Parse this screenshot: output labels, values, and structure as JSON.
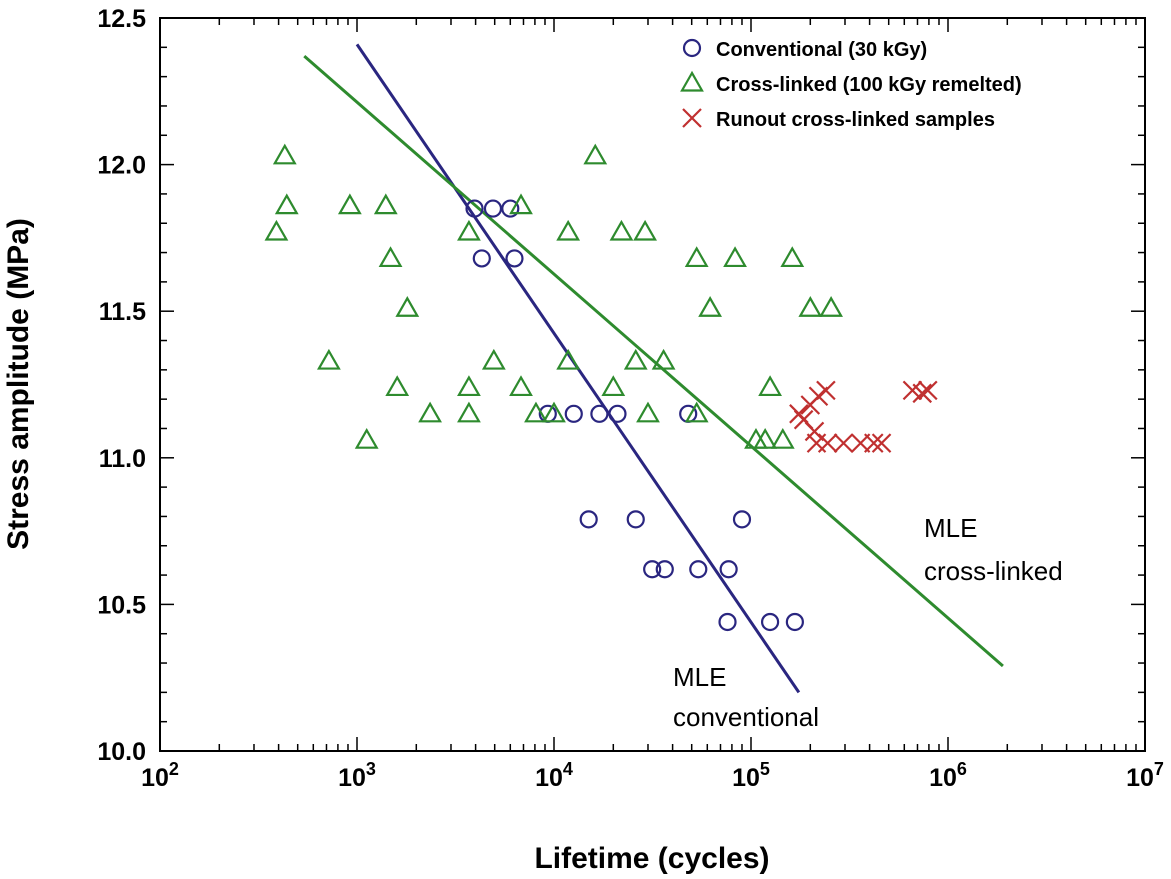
{
  "chart_data": {
    "type": "scatter",
    "xlabel": "Lifetime (cycles)",
    "ylabel": "Stress amplitude (MPa)",
    "xscale": "log",
    "xlim": [
      100,
      10000000
    ],
    "ylim": [
      10.0,
      12.5
    ],
    "x_ticks": [
      {
        "base": "10",
        "exp": "2"
      },
      {
        "base": "10",
        "exp": "3"
      },
      {
        "base": "10",
        "exp": "4"
      },
      {
        "base": "10",
        "exp": "5"
      },
      {
        "base": "10",
        "exp": "6"
      },
      {
        "base": "10",
        "exp": "7"
      }
    ],
    "y_ticks": [
      "10.0",
      "10.5",
      "11.0",
      "11.5",
      "12.0",
      "12.5"
    ],
    "legend_position": "top-right",
    "series": [
      {
        "name": "Conventional (30 kGy)",
        "marker": "circle",
        "color": "#2a2680",
        "points": [
          [
            3950,
            11.85
          ],
          [
            4900,
            11.85
          ],
          [
            6000,
            11.85
          ],
          [
            4300,
            11.68
          ],
          [
            6300,
            11.68
          ],
          [
            9300,
            11.15
          ],
          [
            12600,
            11.15
          ],
          [
            17000,
            11.15
          ],
          [
            21000,
            11.15
          ],
          [
            48000,
            11.15
          ],
          [
            15000,
            10.79
          ],
          [
            26000,
            10.79
          ],
          [
            90000,
            10.79
          ],
          [
            31500,
            10.62
          ],
          [
            36500,
            10.62
          ],
          [
            54000,
            10.62
          ],
          [
            77000,
            10.62
          ],
          [
            76000,
            10.44
          ],
          [
            125000,
            10.44
          ],
          [
            167000,
            10.44
          ]
        ]
      },
      {
        "name": "Cross-linked (100 kGy remelted)",
        "marker": "triangle",
        "color": "#2e8b2e",
        "points": [
          [
            430,
            12.03
          ],
          [
            16200,
            12.03
          ],
          [
            440,
            11.86
          ],
          [
            920,
            11.86
          ],
          [
            1400,
            11.86
          ],
          [
            6800,
            11.86
          ],
          [
            390,
            11.77
          ],
          [
            3700,
            11.77
          ],
          [
            11800,
            11.77
          ],
          [
            22000,
            11.77
          ],
          [
            29000,
            11.77
          ],
          [
            1480,
            11.68
          ],
          [
            53000,
            11.68
          ],
          [
            83000,
            11.68
          ],
          [
            162000,
            11.68
          ],
          [
            1800,
            11.51
          ],
          [
            62000,
            11.51
          ],
          [
            200000,
            11.51
          ],
          [
            255000,
            11.51
          ],
          [
            720,
            11.33
          ],
          [
            4950,
            11.33
          ],
          [
            11800,
            11.33
          ],
          [
            26000,
            11.33
          ],
          [
            36000,
            11.33
          ],
          [
            1600,
            11.24
          ],
          [
            3700,
            11.24
          ],
          [
            6800,
            11.24
          ],
          [
            20000,
            11.24
          ],
          [
            125000,
            11.24
          ],
          [
            2350,
            11.15
          ],
          [
            3700,
            11.15
          ],
          [
            8100,
            11.15
          ],
          [
            10000,
            11.15
          ],
          [
            30000,
            11.15
          ],
          [
            53000,
            11.15
          ],
          [
            1120,
            11.06
          ],
          [
            106000,
            11.06
          ],
          [
            118000,
            11.06
          ],
          [
            145000,
            11.06
          ]
        ]
      },
      {
        "name": "Runout cross-linked samples",
        "marker": "cross",
        "color": "#c03030",
        "points": [
          [
            175000,
            11.15
          ],
          [
            200000,
            11.18
          ],
          [
            220000,
            11.21
          ],
          [
            240000,
            11.23
          ],
          [
            185000,
            11.13
          ],
          [
            210000,
            11.09
          ],
          [
            215000,
            11.05
          ],
          [
            245000,
            11.05
          ],
          [
            295000,
            11.05
          ],
          [
            360000,
            11.05
          ],
          [
            420000,
            11.05
          ],
          [
            460000,
            11.05
          ],
          [
            660000,
            11.23
          ],
          [
            740000,
            11.22
          ],
          [
            790000,
            11.23
          ]
        ]
      }
    ],
    "fit_lines": [
      {
        "name": "MLE conventional",
        "color": "#2a2680",
        "from": [
          1000,
          12.41
        ],
        "to": [
          175000,
          10.2
        ]
      },
      {
        "name": "MLE cross-linked",
        "color": "#2e8b2e",
        "from": [
          540,
          12.37
        ],
        "to": [
          1900000,
          10.29
        ]
      }
    ],
    "annotations": [
      {
        "series": "MLE conventional",
        "lines": [
          "MLE",
          "conventional"
        ]
      },
      {
        "series": "MLE cross-linked",
        "lines": [
          "MLE",
          "cross-linked"
        ]
      }
    ]
  }
}
